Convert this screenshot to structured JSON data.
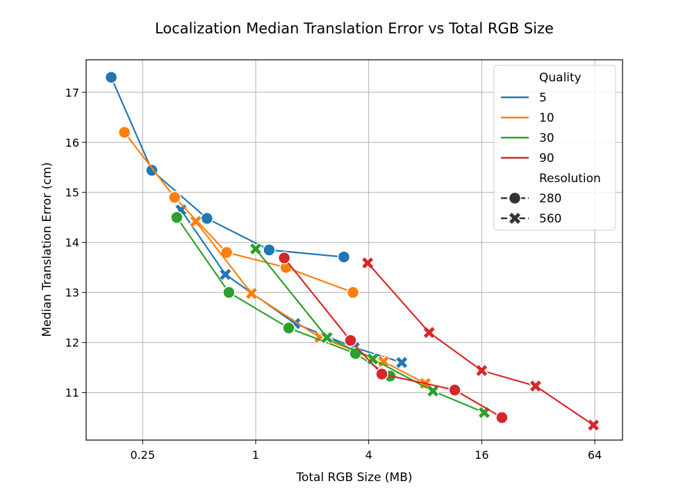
{
  "chart_data": {
    "type": "line",
    "title": "Localization Median Translation Error vs Total RGB Size",
    "xlabel": "Total RGB Size (MB)",
    "ylabel": "Median Translation Error (cm)",
    "xscale": "log2",
    "xlim": [
      0.125,
      90
    ],
    "ylim": [
      10.05,
      17.65
    ],
    "xticks": [
      {
        "value": 0.25,
        "label": "0.25"
      },
      {
        "value": 1,
        "label": "1"
      },
      {
        "value": 4,
        "label": "4"
      },
      {
        "value": 16,
        "label": "16"
      },
      {
        "value": 64,
        "label": "64"
      }
    ],
    "yticks": [
      {
        "value": 11,
        "label": "11"
      },
      {
        "value": 12,
        "label": "12"
      },
      {
        "value": 13,
        "label": "13"
      },
      {
        "value": 14,
        "label": "14"
      },
      {
        "value": 15,
        "label": "15"
      },
      {
        "value": 16,
        "label": "16"
      },
      {
        "value": 17,
        "label": "17"
      }
    ],
    "grid": true,
    "legend": {
      "placement": "top-right",
      "quality_title": "Quality",
      "resolution_title": "Resolution",
      "resolution_entries": [
        {
          "label": "280",
          "marker": "circle"
        },
        {
          "label": "560",
          "marker": "x"
        }
      ]
    },
    "series": [
      {
        "quality": "5",
        "color": "#1f77b4",
        "resolution": "280",
        "marker": "circle",
        "x": [
          0.17,
          0.28,
          0.55,
          1.18,
          2.95
        ],
        "y": [
          17.3,
          15.44,
          14.48,
          13.85,
          13.71
        ]
      },
      {
        "quality": "5",
        "color": "#1f77b4",
        "resolution": "560",
        "marker": "x",
        "x": [
          0.4,
          0.69,
          1.62,
          3.35,
          6.0
        ],
        "y": [
          14.65,
          13.36,
          12.38,
          11.9,
          11.6
        ]
      },
      {
        "quality": "10",
        "color": "#ff7f0e",
        "resolution": "280",
        "marker": "circle",
        "x": [
          0.2,
          0.37,
          0.7,
          1.45,
          3.3
        ],
        "y": [
          16.2,
          14.9,
          13.8,
          13.5,
          13.0
        ]
      },
      {
        "quality": "10",
        "color": "#ff7f0e",
        "resolution": "560",
        "marker": "x",
        "x": [
          0.48,
          0.95,
          2.2,
          4.8,
          8.0
        ],
        "y": [
          14.42,
          12.98,
          12.1,
          11.62,
          11.18
        ]
      },
      {
        "quality": "30",
        "color": "#2ca02c",
        "resolution": "280",
        "marker": "circle",
        "x": [
          0.38,
          0.72,
          1.5,
          3.4,
          5.2
        ],
        "y": [
          14.5,
          13.0,
          12.29,
          11.78,
          11.33
        ]
      },
      {
        "quality": "30",
        "color": "#2ca02c",
        "resolution": "560",
        "marker": "x",
        "x": [
          1.0,
          2.4,
          4.2,
          8.8,
          16.5
        ],
        "y": [
          13.87,
          12.1,
          11.67,
          11.03,
          10.6
        ]
      },
      {
        "quality": "90",
        "color": "#d62728",
        "resolution": "280",
        "marker": "circle",
        "x": [
          1.42,
          3.2,
          4.7,
          11.5,
          20.5
        ],
        "y": [
          13.69,
          12.04,
          11.37,
          11.05,
          10.5
        ]
      },
      {
        "quality": "90",
        "color": "#d62728",
        "resolution": "560",
        "marker": "x",
        "x": [
          3.95,
          8.4,
          16.0,
          31.0,
          63.0
        ],
        "y": [
          13.59,
          12.2,
          11.44,
          11.13,
          10.35
        ]
      }
    ]
  }
}
